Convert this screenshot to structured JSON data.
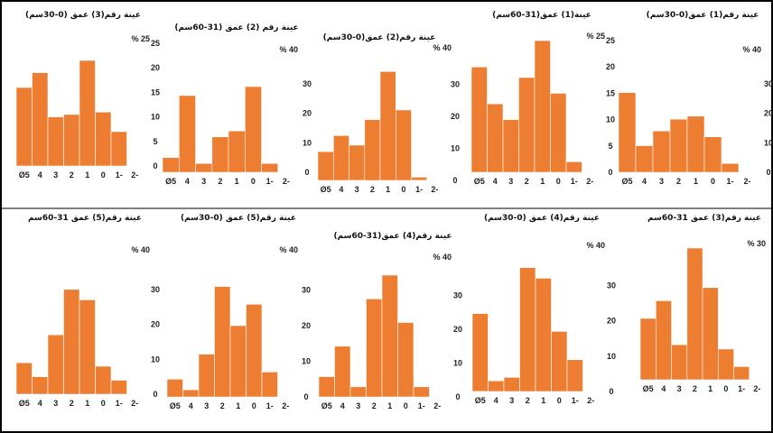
{
  "colors": {
    "bar": "#ED7D31",
    "bar_edge": "#ffffff",
    "frame": "#000000",
    "axis": "#222222"
  },
  "chart_data": [
    {
      "type": "bar",
      "title": "عينة رقم(1) عمق(0-30سم)",
      "ylabel": "% 40",
      "categories": [
        "Ø5",
        "4",
        "3",
        "2",
        "1",
        "0",
        "1-",
        "2-"
      ],
      "values": [
        27,
        9,
        14,
        18,
        19,
        12,
        3,
        0
      ],
      "ylim": [
        0,
        40
      ],
      "yticks": [
        "0",
        "10",
        "20",
        "30",
        ""
      ]
    },
    {
      "type": "bar",
      "title": "عينة(1) عمق(31-60سم)",
      "ylabel": "% 25",
      "categories": [
        "Ø5",
        "4",
        "3",
        "2",
        "1",
        "0",
        "1-",
        "2-"
      ],
      "values": [
        20,
        13,
        10,
        18,
        25,
        15,
        2,
        0
      ],
      "ylim": [
        0,
        25
      ],
      "yticks": [
        "0",
        "5",
        "10",
        "15",
        "20",
        "25"
      ]
    },
    {
      "type": "bar",
      "title": "عينة رقم(2) عمق(0-30سم)",
      "ylabel": "% 40",
      "categories": [
        "Ø5",
        "4",
        "3",
        "2",
        "1",
        "0",
        "1-",
        "2-"
      ],
      "values": [
        9,
        14,
        11,
        19,
        34,
        22,
        1,
        0
      ],
      "ylim": [
        0,
        40
      ],
      "yticks": [
        "0",
        "10",
        "20",
        "30",
        ""
      ]
    },
    {
      "type": "bar",
      "title": "عينة رقم (2) عمق (31-60سم)",
      "ylabel": "% 40",
      "categories": [
        "Ø5",
        "4",
        "3",
        "2",
        "1",
        "0",
        "1-",
        "2-"
      ],
      "values": [
        5,
        26,
        3,
        12,
        14,
        29,
        3,
        0
      ],
      "ylim": [
        0,
        40
      ],
      "yticks": [
        "0",
        "10",
        "20",
        "30",
        ""
      ]
    },
    {
      "type": "bar",
      "title": "عينة رقم(3) عمق (0-30سم)",
      "ylabel": "% 25",
      "categories": [
        "Ø5",
        "4",
        "3",
        "2",
        "1",
        "0",
        "1-",
        "2-"
      ],
      "values": [
        16,
        19,
        10,
        10.5,
        21.5,
        11,
        7,
        0
      ],
      "ylim": [
        0,
        25
      ],
      "yticks": [
        "0",
        "5",
        "10",
        "15",
        "20",
        "25"
      ]
    },
    {
      "type": "bar",
      "title": "عينة رقم(3) عمق 31-60سم",
      "ylabel": "% 30",
      "categories": [
        "Ø5",
        "4",
        "3",
        "2",
        "1",
        "0",
        "1-",
        "2-"
      ],
      "values": [
        14,
        18,
        8,
        30,
        21,
        7,
        3,
        0
      ],
      "ylim": [
        0,
        30
      ],
      "yticks": [
        "0",
        "5",
        "10",
        "15",
        "20",
        "25",
        "30"
      ]
    },
    {
      "type": "bar",
      "title": "عينة رقم(4) عمق (0-30سم)",
      "ylabel": "% 40",
      "categories": [
        "Ø5",
        "4",
        "3",
        "2",
        "1",
        "0",
        "1-",
        "2-"
      ],
      "values": [
        22,
        3,
        4,
        35,
        32,
        17,
        9,
        0
      ],
      "ylim": [
        0,
        40
      ],
      "yticks": [
        "0",
        "10",
        "20",
        "30",
        ""
      ]
    },
    {
      "type": "bar",
      "title": "عينة رقم(4) عمق(31-60سم)",
      "ylabel": "% 40",
      "categories": [
        "Ø5",
        "4",
        "3",
        "2",
        "1",
        "0",
        "1-",
        "2-"
      ],
      "values": [
        6,
        15,
        3,
        29,
        36,
        22,
        3,
        0
      ],
      "ylim": [
        0,
        40
      ],
      "yticks": [
        "0",
        "10",
        "20",
        "30",
        ""
      ]
    },
    {
      "type": "bar",
      "title": "عينة رقم(5) عمق (0-30سم)",
      "ylabel": "% 40",
      "categories": [
        "Ø5",
        "4",
        "3",
        "2",
        "1",
        "0",
        "1-",
        "2-"
      ],
      "values": [
        5,
        2,
        12,
        31,
        20,
        26,
        7,
        0
      ],
      "ylim": [
        0,
        40
      ],
      "yticks": [
        "0",
        "10",
        "20",
        "30",
        ""
      ]
    },
    {
      "type": "bar",
      "title": "عينة رقم(5) عمق 31-60سم",
      "ylabel": "% 40",
      "categories": [
        "Ø5",
        "4",
        "3",
        "2",
        "1",
        "0",
        "1-",
        "2-"
      ],
      "values": [
        9,
        5,
        17,
        30,
        27,
        8,
        4,
        0
      ],
      "ylim": [
        0,
        40
      ],
      "yticks": [
        "0",
        "10",
        "20",
        "30",
        ""
      ]
    }
  ]
}
